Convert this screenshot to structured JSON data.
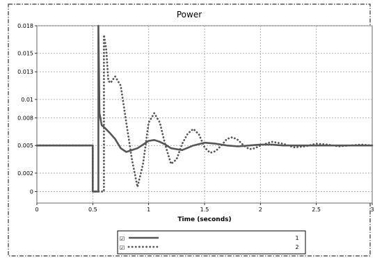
{
  "chart_data": {
    "type": "line",
    "title": "Power",
    "xlabel": "Time (seconds)",
    "ylabel": "",
    "xlim": [
      0,
      3
    ],
    "ylim": [
      -0.00125,
      0.018
    ],
    "x_ticks": [
      "0",
      "0.5",
      "1",
      "1.5",
      "2",
      "2.5",
      "3"
    ],
    "y_ticks": [
      "0",
      "0.002",
      "0.005",
      "0.008",
      "0.01",
      "0.013",
      "0.015",
      "0.018"
    ],
    "grid": true,
    "legend_position": "bottom-center",
    "series": [
      {
        "name": "1",
        "style": "solid",
        "color": "#555555",
        "x": [
          0,
          0.5,
          0.5,
          0.55,
          0.55,
          0.56,
          0.58,
          0.6,
          0.65,
          0.7,
          0.75,
          0.8,
          0.9,
          1.0,
          1.05,
          1.1,
          1.15,
          1.2,
          1.3,
          1.4,
          1.5,
          1.6,
          1.7,
          1.8,
          1.9,
          2.0,
          2.1,
          2.2,
          2.3,
          2.4,
          2.5,
          2.6,
          2.7,
          2.8,
          2.9,
          3.0
        ],
        "y": [
          0.005,
          0.005,
          0.0,
          0.0,
          0.018,
          0.0085,
          0.0072,
          0.007,
          0.0064,
          0.0057,
          0.0047,
          0.0043,
          0.0047,
          0.0055,
          0.0056,
          0.0054,
          0.0051,
          0.0047,
          0.0045,
          0.005,
          0.0053,
          0.0052,
          0.005,
          0.0049,
          0.005,
          0.0051,
          0.0051,
          0.005,
          0.005,
          0.005,
          0.005,
          0.005,
          0.005,
          0.005,
          0.005,
          0.005
        ]
      },
      {
        "name": "2",
        "style": "dotted",
        "color": "#555555",
        "x": [
          0,
          0.5,
          0.5,
          0.6,
          0.6,
          0.62,
          0.64,
          0.66,
          0.7,
          0.75,
          0.8,
          0.85,
          0.9,
          0.95,
          1.0,
          1.05,
          1.1,
          1.15,
          1.2,
          1.25,
          1.3,
          1.35,
          1.4,
          1.45,
          1.5,
          1.55,
          1.6,
          1.65,
          1.7,
          1.75,
          1.8,
          1.85,
          1.9,
          1.95,
          2.0,
          2.1,
          2.2,
          2.3,
          2.4,
          2.5,
          2.6,
          2.7,
          2.8,
          2.9,
          3.0
        ],
        "y": [
          0.005,
          0.005,
          0.0,
          0.0,
          0.017,
          0.0155,
          0.012,
          0.0118,
          0.0125,
          0.0115,
          0.0075,
          0.0035,
          0.0005,
          0.003,
          0.0075,
          0.0085,
          0.0075,
          0.005,
          0.003,
          0.0035,
          0.0052,
          0.0063,
          0.0068,
          0.0062,
          0.0048,
          0.0042,
          0.0044,
          0.005,
          0.0057,
          0.0059,
          0.0056,
          0.005,
          0.0046,
          0.0047,
          0.005,
          0.0054,
          0.0052,
          0.0048,
          0.0049,
          0.0052,
          0.0051,
          0.0049,
          0.005,
          0.0051,
          0.005
        ]
      }
    ]
  },
  "legend": {
    "checked_glyph": "☑"
  }
}
